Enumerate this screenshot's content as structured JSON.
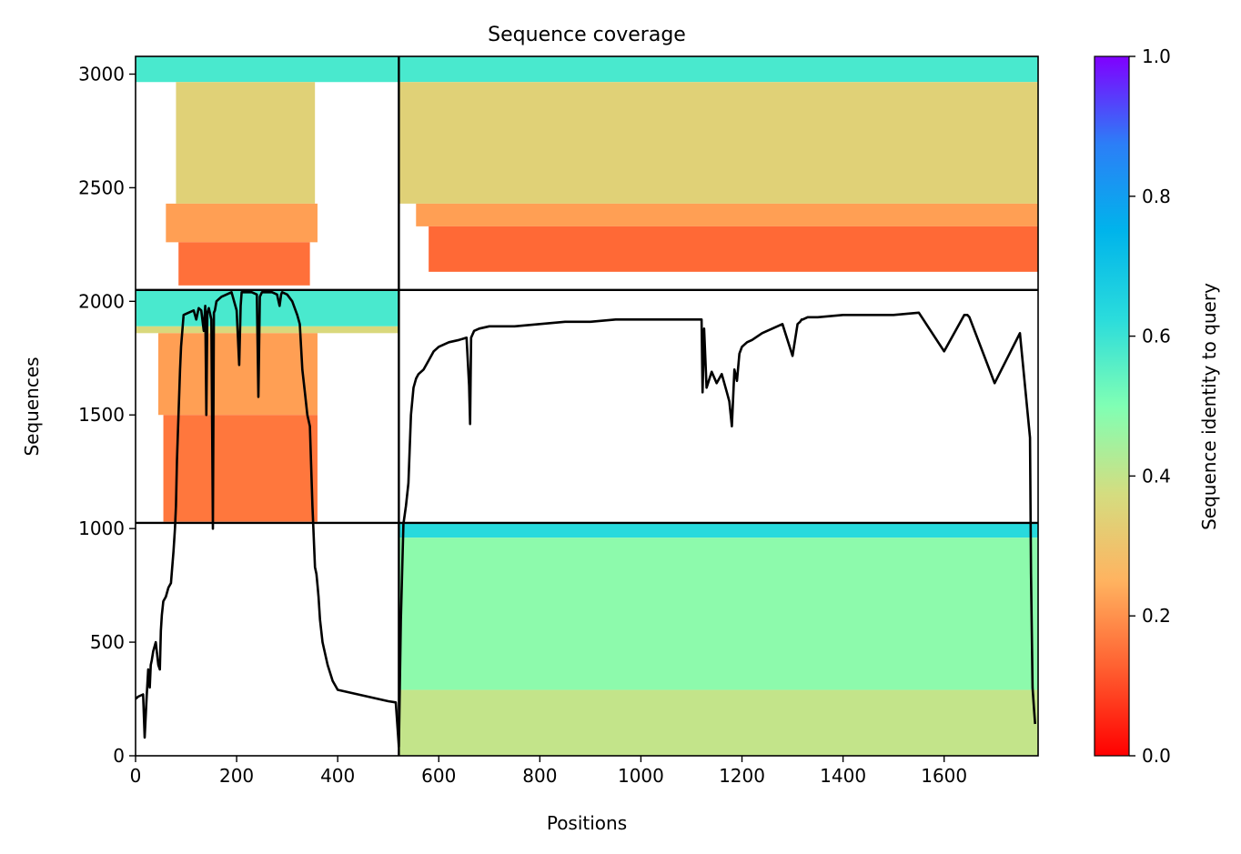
{
  "chart_data": {
    "type": "heatmap",
    "title": "Sequence coverage",
    "xlabel": "Positions",
    "ylabel": "Sequences",
    "xlim": [
      0,
      1786
    ],
    "ylim": [
      0,
      3078
    ],
    "xticks": [
      0,
      200,
      400,
      600,
      800,
      1000,
      1200,
      1400,
      1600
    ],
    "yticks": [
      0,
      500,
      1000,
      1500,
      2000,
      2500,
      3000
    ],
    "colorbar": {
      "label": "Sequence identity to query",
      "range": [
        0,
        1
      ],
      "ticks": [
        "0.0",
        "0.2",
        "0.4",
        "0.6",
        "0.8",
        "1.0"
      ],
      "colormap": "rainbow_r",
      "stops": [
        "#ff0000",
        "#ff5f30",
        "#ffb360",
        "#d4dd80",
        "#80ffb4",
        "#2adcdc",
        "#00b4eb",
        "#2c7ef7",
        "#8000ff"
      ]
    },
    "chain_boundaries": {
      "x": [
        521
      ],
      "y": [
        1025,
        2050
      ]
    },
    "blocks": [
      {
        "x": [
          0,
          521
        ],
        "y": [
          2050,
          3078
        ],
        "bands": [
          {
            "y": [
              2965,
              3078
            ],
            "x": [
              0,
              521
            ],
            "identity": 0.58
          },
          {
            "y": [
              2430,
              2965
            ],
            "x": [
              80,
              355
            ],
            "identity": 0.34
          },
          {
            "y": [
              2260,
              2430
            ],
            "x": [
              60,
              360
            ],
            "identity": 0.22
          },
          {
            "y": [
              2070,
              2260
            ],
            "x": [
              85,
              345
            ],
            "identity": 0.15
          }
        ]
      },
      {
        "x": [
          521,
          1786
        ],
        "y": [
          2050,
          3078
        ],
        "bands": [
          {
            "y": [
              2965,
              3078
            ],
            "x": [
              521,
              1786
            ],
            "identity": 0.58
          },
          {
            "y": [
              2430,
              2965
            ],
            "x": [
              521,
              1786
            ],
            "identity": 0.34
          },
          {
            "y": [
              2330,
              2430
            ],
            "x": [
              555,
              1786
            ],
            "identity": 0.22
          },
          {
            "y": [
              2130,
              2330
            ],
            "x": [
              580,
              1786
            ],
            "identity": 0.14
          }
        ]
      },
      {
        "x": [
          0,
          521
        ],
        "y": [
          1025,
          2050
        ],
        "bands": [
          {
            "y": [
              1890,
              2050
            ],
            "x": [
              0,
              521
            ],
            "identity": 0.58
          },
          {
            "y": [
              1860,
              1890
            ],
            "x": [
              0,
              521
            ],
            "identity": 0.36
          },
          {
            "y": [
              1500,
              1860
            ],
            "x": [
              45,
              360
            ],
            "identity": 0.22
          },
          {
            "y": [
              1030,
              1500
            ],
            "x": [
              55,
              360
            ],
            "identity": 0.16
          }
        ]
      },
      {
        "x": [
          521,
          1786
        ],
        "y": [
          0,
          1025
        ],
        "bands": [
          {
            "y": [
              960,
              1025
            ],
            "x": [
              521,
              1786
            ],
            "identity": 0.63
          },
          {
            "y": [
              290,
              960
            ],
            "x": [
              521,
              1786
            ],
            "identity": 0.48
          },
          {
            "y": [
              0,
              290
            ],
            "x": [
              521,
              1786
            ],
            "identity": 0.4
          }
        ]
      }
    ],
    "coverage_line": {
      "x": [
        0,
        5,
        15,
        18,
        22,
        25,
        28,
        30,
        32,
        35,
        40,
        45,
        48,
        50,
        52,
        55,
        60,
        65,
        70,
        75,
        78,
        80,
        82,
        85,
        88,
        90,
        95,
        100,
        105,
        110,
        115,
        120,
        125,
        130,
        135,
        138,
        140,
        142,
        145,
        150,
        153,
        155,
        157,
        160,
        165,
        170,
        180,
        190,
        200,
        205,
        208,
        210,
        215,
        220,
        230,
        240,
        243,
        246,
        250,
        260,
        270,
        280,
        285,
        288,
        290,
        300,
        310,
        320,
        325,
        330,
        335,
        340,
        345,
        350,
        355,
        358,
        360,
        362,
        365,
        370,
        380,
        390,
        400,
        420,
        440,
        460,
        480,
        500,
        515,
        521,
        525,
        530,
        535,
        540,
        545,
        550,
        555,
        560,
        570,
        580,
        590,
        600,
        620,
        640,
        655,
        660,
        662,
        664,
        670,
        680,
        700,
        750,
        800,
        850,
        900,
        950,
        1000,
        1050,
        1100,
        1115,
        1120,
        1122,
        1125,
        1130,
        1140,
        1150,
        1160,
        1170,
        1175,
        1180,
        1185,
        1190,
        1195,
        1200,
        1205,
        1210,
        1220,
        1240,
        1260,
        1280,
        1300,
        1310,
        1315,
        1318,
        1320,
        1330,
        1350,
        1400,
        1450,
        1500,
        1550,
        1600,
        1640,
        1643,
        1646,
        1650,
        1700,
        1750,
        1770,
        1772,
        1775,
        1778,
        1780,
        1782,
        1784,
        1786
      ],
      "y": [
        250,
        260,
        270,
        80,
        260,
        380,
        300,
        400,
        420,
        460,
        500,
        400,
        380,
        550,
        620,
        680,
        700,
        740,
        760,
        900,
        1000,
        1100,
        1300,
        1500,
        1700,
        1800,
        1940,
        1945,
        1950,
        1955,
        1960,
        1920,
        1970,
        1960,
        1870,
        1980,
        1500,
        1950,
        1970,
        1920,
        1000,
        1950,
        1960,
        2000,
        2010,
        2020,
        2030,
        2040,
        1960,
        1720,
        1980,
        2040,
        2040,
        2040,
        2040,
        2030,
        1580,
        2020,
        2040,
        2040,
        2040,
        2030,
        1980,
        2030,
        2040,
        2030,
        2000,
        1940,
        1900,
        1700,
        1600,
        1500,
        1450,
        1100,
        830,
        800,
        750,
        700,
        600,
        500,
        400,
        330,
        290,
        280,
        270,
        260,
        250,
        240,
        235,
        40,
        600,
        1020,
        1100,
        1200,
        1500,
        1620,
        1660,
        1680,
        1700,
        1740,
        1780,
        1800,
        1820,
        1830,
        1840,
        1630,
        1460,
        1840,
        1870,
        1880,
        1890,
        1890,
        1900,
        1910,
        1910,
        1920,
        1920,
        1920,
        1920,
        1920,
        1920,
        1600,
        1880,
        1620,
        1690,
        1640,
        1680,
        1600,
        1560,
        1450,
        1700,
        1650,
        1770,
        1800,
        1810,
        1820,
        1830,
        1860,
        1880,
        1900,
        1760,
        1900,
        1910,
        1920,
        1920,
        1930,
        1930,
        1940,
        1940,
        1940,
        1950,
        1780,
        1940,
        1940,
        1940,
        1930,
        1640,
        1860,
        1400,
        800,
        300,
        200,
        140
      ]
    }
  }
}
